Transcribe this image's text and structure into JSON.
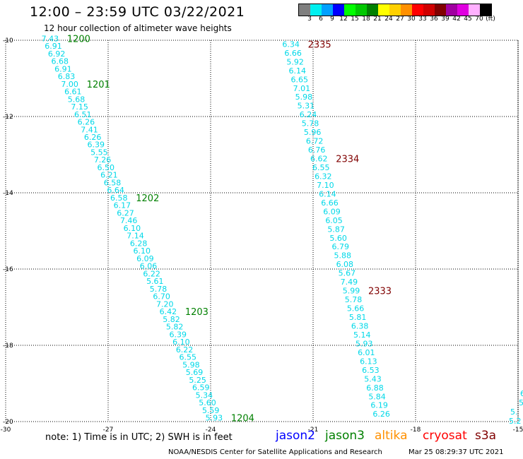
{
  "header": {
    "title": "12:00 – 23:59 UTC 03/22/2021",
    "subtitle": "12 hour collection of altimeter wave heights"
  },
  "color_scale": {
    "bins": [
      {
        "color": "#7f7f7f",
        "label": "3"
      },
      {
        "color": "#00f0f0",
        "label": "6"
      },
      {
        "color": "#00a0ff",
        "label": "9"
      },
      {
        "color": "#0000ff",
        "label": "12"
      },
      {
        "color": "#00ff00",
        "label": "15"
      },
      {
        "color": "#00c800",
        "label": "18"
      },
      {
        "color": "#008000",
        "label": "21"
      },
      {
        "color": "#ffff00",
        "label": "24"
      },
      {
        "color": "#ffd000",
        "label": "27"
      },
      {
        "color": "#ff9000",
        "label": "30"
      },
      {
        "color": "#ff0000",
        "label": "33"
      },
      {
        "color": "#d00000",
        "label": "36"
      },
      {
        "color": "#800000",
        "label": "39"
      },
      {
        "color": "#a000a0",
        "label": "42"
      },
      {
        "color": "#e000e0",
        "label": "45"
      },
      {
        "color": "#ffb0ff",
        "label": "70"
      },
      {
        "color": "#000000",
        "label": "(ft)"
      }
    ]
  },
  "map": {
    "lat_ticks": [
      {
        "label": "-10",
        "lat": -10
      },
      {
        "label": "-12",
        "lat": -12
      },
      {
        "label": "-14",
        "lat": -14
      },
      {
        "label": "-16",
        "lat": -16
      },
      {
        "label": "-18",
        "lat": -18
      },
      {
        "label": "-20",
        "lat": -20
      }
    ],
    "lon_ticks": [
      {
        "label": "-30",
        "lon": -30
      },
      {
        "label": "-27",
        "lon": -27
      },
      {
        "label": "-24",
        "lon": -24
      },
      {
        "label": "-21",
        "lon": -21
      },
      {
        "label": "-18",
        "lon": -18
      },
      {
        "label": "-15",
        "lon": -15
      }
    ],
    "lat_range": [
      -20,
      -10
    ],
    "lon_range": [
      -30,
      -15
    ],
    "grid": true
  },
  "tracks": [
    {
      "id": "track-a",
      "color": "#00d8e8",
      "start": {
        "lon": -28.7,
        "lat": -9.95
      },
      "end": {
        "lon": -23.9,
        "lat": -19.9
      },
      "values": [
        "7.43",
        "6.91",
        "6.92",
        "6.68",
        "6.91",
        "6.83",
        "7.00",
        "6.61",
        "5.68",
        "7.15",
        "6.51",
        "6.26",
        "7.41",
        "6.26",
        "6.39",
        "5.55",
        "7.26",
        "6.50",
        "6.21",
        "6.58",
        "6.64",
        "6.58",
        "6.17",
        "6.27",
        "7.46",
        "6.10",
        "7.14",
        "6.28",
        "6.10",
        "6.09",
        "6.06",
        "6.22",
        "5.61",
        "5.78",
        "6.70",
        "7.20",
        "6.42",
        "5.82",
        "5.82",
        "6.39",
        "6.10",
        "6.22",
        "6.55",
        "5.98",
        "5.69",
        "5.25",
        "6.59",
        "5.34",
        "5.60",
        "5.59",
        "5.93"
      ],
      "time_labels": [
        {
          "label": "1200",
          "index": 0
        },
        {
          "label": "1201",
          "index": 6
        },
        {
          "label": "1202",
          "index": 21
        },
        {
          "label": "1203",
          "index": 36
        },
        {
          "label": "1204",
          "index": 50
        }
      ],
      "time_color": "#008000"
    },
    {
      "id": "track-b",
      "color": "#00d8e8",
      "start": {
        "lon": -21.65,
        "lat": -10.1
      },
      "end": {
        "lon": -19.0,
        "lat": -19.8
      },
      "values": [
        "6.34",
        "6.66",
        "5.92",
        "6.14",
        "6.65",
        "7.01",
        "5.98",
        "5.31",
        "6.24",
        "5.78",
        "5.96",
        "6.72",
        "6.76",
        "6.62",
        "6.55",
        "6.32",
        "7.10",
        "6.14",
        "6.66",
        "6.09",
        "6.05",
        "5.87",
        "5.60",
        "6.79",
        "5.88",
        "6.08",
        "5.67",
        "7.49",
        "5.99",
        "5.78",
        "5.66",
        "5.81",
        "6.38",
        "5.14",
        "5.93",
        "6.01",
        "6.13",
        "6.53",
        "5.43",
        "6.88",
        "5.84",
        "6.19",
        "6.26"
      ],
      "time_labels": [
        {
          "label": "2335",
          "index": 0
        },
        {
          "label": "2334",
          "index": 13
        },
        {
          "label": "2333",
          "index": 28
        }
      ],
      "time_color": "#800000"
    }
  ],
  "edge_track": {
    "color": "#00d8e8",
    "values": [
      "6",
      "5",
      "5.",
      "5.2"
    ]
  },
  "footer": {
    "note": "note: 1) Time is in UTC; 2) SWH is in feet",
    "missions": [
      {
        "name": "jason2",
        "color": "#0000ff"
      },
      {
        "name": "jason3",
        "color": "#008000"
      },
      {
        "name": "altika",
        "color": "#ff9000"
      },
      {
        "name": "cryosat",
        "color": "#ff0000"
      },
      {
        "name": "s3a",
        "color": "#800000"
      }
    ],
    "credit": "NOAA/NESDIS Center for Satellite Applications and Research",
    "timestamp": "Mar 25 08:29:37 UTC 2021"
  }
}
